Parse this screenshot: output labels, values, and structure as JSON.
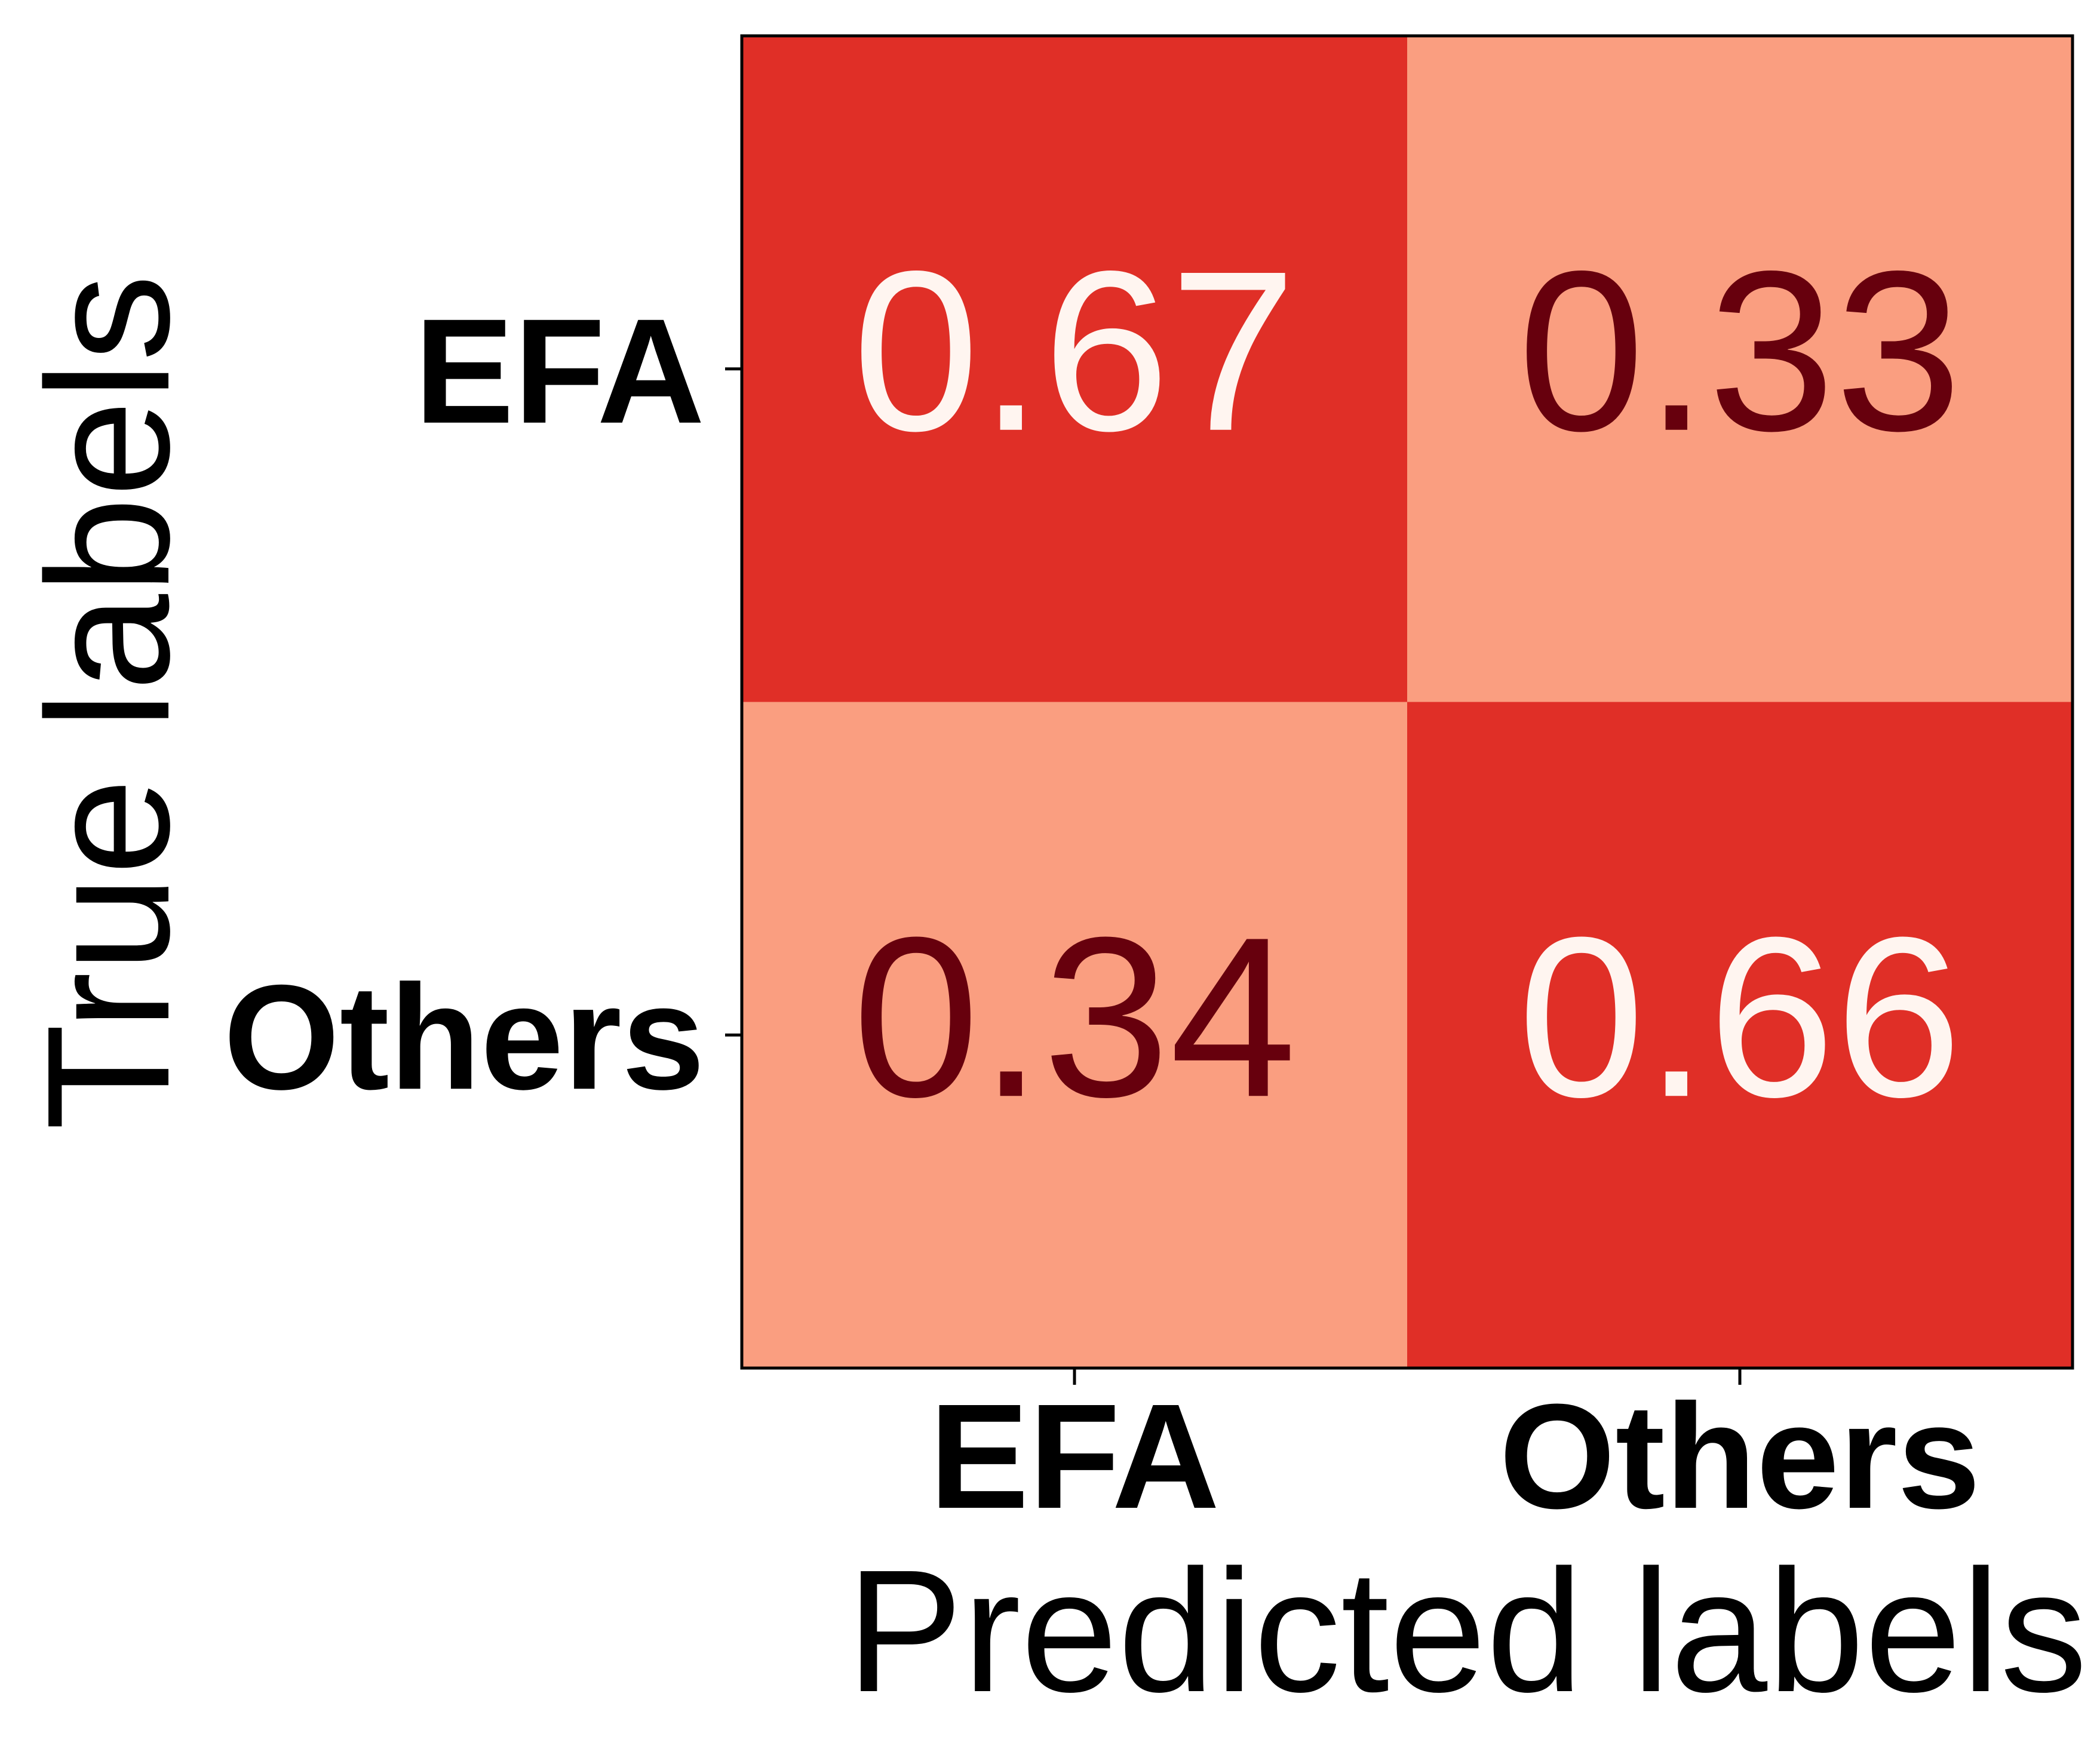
{
  "chart_data": {
    "type": "heatmap",
    "x_categories": [
      "EFA",
      "Others"
    ],
    "y_categories": [
      "EFA",
      "Others"
    ],
    "values": [
      [
        0.67,
        0.33
      ],
      [
        0.34,
        0.66
      ]
    ],
    "value_labels": [
      [
        "0.67",
        "0.33"
      ],
      [
        "0.34",
        "0.66"
      ]
    ],
    "xlabel": "Predicted labels",
    "ylabel": "True labels",
    "colormap": "Reds",
    "colors": {
      "high_cell": "#e02f27",
      "low_cell": "#fa9e80",
      "text_on_high": "#fff5f0",
      "text_on_low": "#67000d",
      "axis": "#000000"
    },
    "grid": false,
    "legend": "none"
  }
}
